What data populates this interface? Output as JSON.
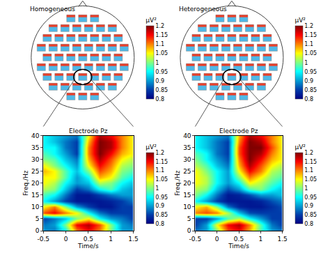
{
  "chart_data": [
    {
      "type": "heatmap",
      "title": "Homogeneous",
      "subtitle": "Electrode Pz",
      "xlabel": "Time/s",
      "ylabel": "Freq./Hz",
      "x": [
        -0.5,
        -0.25,
        0,
        0.25,
        0.5,
        0.75,
        1,
        1.25,
        1.5
      ],
      "y": [
        0,
        2.5,
        5,
        7.5,
        10,
        12.5,
        15,
        17.5,
        20,
        22.5,
        25,
        27.5,
        30,
        32.5,
        35,
        37.5,
        40
      ],
      "z": [
        [
          0.9,
          0.88,
          0.95,
          1.1,
          1.15,
          1.1,
          1.0,
          0.9,
          0.9
        ],
        [
          0.88,
          0.9,
          1.0,
          1.15,
          1.18,
          1.12,
          1.0,
          0.9,
          0.88
        ],
        [
          0.85,
          0.88,
          0.92,
          1.0,
          1.05,
          0.95,
          0.9,
          0.88,
          0.85
        ],
        [
          1.12,
          1.15,
          1.1,
          1.05,
          0.95,
          0.88,
          0.85,
          0.85,
          0.85
        ],
        [
          1.05,
          1.1,
          1.0,
          0.9,
          0.85,
          0.82,
          0.82,
          0.85,
          0.85
        ],
        [
          0.95,
          0.9,
          0.85,
          0.82,
          0.82,
          0.82,
          0.83,
          0.85,
          0.88
        ],
        [
          0.98,
          0.95,
          0.88,
          0.82,
          0.82,
          0.85,
          0.88,
          0.9,
          0.9
        ],
        [
          1.02,
          1.0,
          0.92,
          0.85,
          0.88,
          0.95,
          0.98,
          0.92,
          0.9
        ],
        [
          1.05,
          1.02,
          0.95,
          0.9,
          0.92,
          1.02,
          1.0,
          0.95,
          0.92
        ],
        [
          1.05,
          1.05,
          0.98,
          0.9,
          0.95,
          1.08,
          1.05,
          0.98,
          0.95
        ],
        [
          1.08,
          1.05,
          0.98,
          0.92,
          1.0,
          1.12,
          1.08,
          1.0,
          0.98
        ],
        [
          1.05,
          1.0,
          0.95,
          0.9,
          1.05,
          1.15,
          1.1,
          1.02,
          1.0
        ],
        [
          1.0,
          0.98,
          0.92,
          0.88,
          1.08,
          1.18,
          1.12,
          1.05,
          1.02
        ],
        [
          0.98,
          0.95,
          0.9,
          0.85,
          1.1,
          1.2,
          1.15,
          1.08,
          1.05
        ],
        [
          0.95,
          0.95,
          0.88,
          0.85,
          1.1,
          1.2,
          1.18,
          1.1,
          1.05
        ],
        [
          0.95,
          0.92,
          0.88,
          0.85,
          1.08,
          1.2,
          1.18,
          1.1,
          1.05
        ],
        [
          0.95,
          0.92,
          0.9,
          0.88,
          1.05,
          1.18,
          1.15,
          1.1,
          1.05
        ]
      ],
      "xlim": [
        -0.5,
        1.5
      ],
      "ylim": [
        0,
        40
      ],
      "xticks": [
        -0.5,
        0,
        0.5,
        1,
        1.5
      ],
      "yticks": [
        0,
        5,
        10,
        15,
        20,
        25,
        30,
        35,
        40
      ],
      "colorbar": {
        "label": "μV²",
        "range": [
          0.8,
          1.2
        ],
        "ticks": [
          0.8,
          0.85,
          0.9,
          0.95,
          1,
          1.05,
          1.1,
          1.15,
          1.2
        ]
      }
    },
    {
      "type": "heatmap",
      "title": "Heterogeneous",
      "subtitle": "Electrode Pz",
      "xlabel": "Time/s",
      "ylabel": "Freq./Hz",
      "x": [
        -0.5,
        -0.25,
        0,
        0.25,
        0.5,
        0.75,
        1,
        1.25,
        1.5
      ],
      "y": [
        0,
        2.5,
        5,
        7.5,
        10,
        12.5,
        15,
        17.5,
        20,
        22.5,
        25,
        27.5,
        30,
        32.5,
        35,
        37.5,
        40
      ],
      "z": [
        [
          0.88,
          0.9,
          1.0,
          1.12,
          1.15,
          1.08,
          0.98,
          0.9,
          0.88
        ],
        [
          0.85,
          0.9,
          1.05,
          1.15,
          1.18,
          1.1,
          0.98,
          0.88,
          0.85
        ],
        [
          0.85,
          0.85,
          0.9,
          0.98,
          1.02,
          0.95,
          0.9,
          0.85,
          0.85
        ],
        [
          1.1,
          1.12,
          1.1,
          1.02,
          0.92,
          0.86,
          0.85,
          0.85,
          0.85
        ],
        [
          1.05,
          1.08,
          1.0,
          0.88,
          0.83,
          0.82,
          0.82,
          0.84,
          0.86
        ],
        [
          0.95,
          0.9,
          0.85,
          0.82,
          0.82,
          0.82,
          0.83,
          0.86,
          0.88
        ],
        [
          1.0,
          0.95,
          0.88,
          0.82,
          0.83,
          0.86,
          0.9,
          0.9,
          0.92
        ],
        [
          1.02,
          1.0,
          0.92,
          0.86,
          0.9,
          0.98,
          1.0,
          0.95,
          0.92
        ],
        [
          1.05,
          1.02,
          0.95,
          0.9,
          0.95,
          1.05,
          1.02,
          0.98,
          0.95
        ],
        [
          1.05,
          1.02,
          0.95,
          0.9,
          1.0,
          1.1,
          1.05,
          1.0,
          0.98
        ],
        [
          1.05,
          1.0,
          0.95,
          0.9,
          1.05,
          1.15,
          1.1,
          1.02,
          1.0
        ],
        [
          1.02,
          0.98,
          0.92,
          0.88,
          1.08,
          1.18,
          1.12,
          1.05,
          1.02
        ],
        [
          1.0,
          0.95,
          0.9,
          0.86,
          1.1,
          1.2,
          1.15,
          1.08,
          1.05
        ],
        [
          0.98,
          0.95,
          0.88,
          0.85,
          1.12,
          1.2,
          1.18,
          1.1,
          1.05
        ],
        [
          0.95,
          0.92,
          0.88,
          0.85,
          1.12,
          1.2,
          1.2,
          1.12,
          1.05
        ],
        [
          0.95,
          0.92,
          0.88,
          0.85,
          1.1,
          1.2,
          1.18,
          1.1,
          1.05
        ],
        [
          0.95,
          0.92,
          0.9,
          0.88,
          1.08,
          1.18,
          1.15,
          1.1,
          1.05
        ]
      ],
      "xlim": [
        -0.5,
        1.5
      ],
      "ylim": [
        0,
        40
      ],
      "xticks": [
        -0.5,
        0,
        0.5,
        1,
        1.5
      ],
      "yticks": [
        0,
        5,
        10,
        15,
        20,
        25,
        30,
        35,
        40
      ],
      "colorbar": {
        "label": "μV²",
        "range": [
          0.8,
          1.2
        ],
        "ticks": [
          0.8,
          0.85,
          0.9,
          0.95,
          1,
          1.05,
          1.1,
          1.15,
          1.2
        ]
      }
    }
  ]
}
